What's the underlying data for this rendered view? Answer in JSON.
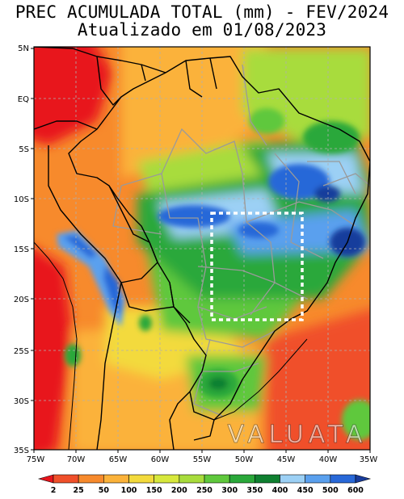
{
  "header": {
    "title_line1": "PREC ACUMULADA TOTAL (mm) - FEV/2024",
    "title_line2": "Atualizado em 01/08/2023"
  },
  "map": {
    "watermark": "VALUATA",
    "lat_labels": [
      "5N",
      "EQ",
      "5S",
      "10S",
      "15S",
      "20S",
      "25S",
      "30S",
      "35S"
    ],
    "lon_labels": [
      "75W",
      "70W",
      "65W",
      "60W",
      "55W",
      "50W",
      "45W",
      "40W",
      "35W"
    ]
  },
  "colorbar": {
    "ticks": [
      "2",
      "25",
      "50",
      "100",
      "150",
      "200",
      "250",
      "300",
      "350",
      "400",
      "450",
      "500",
      "600"
    ],
    "colors": [
      "#e8141b",
      "#f0502a",
      "#f78a2c",
      "#fbb23a",
      "#f3da3c",
      "#d7e83c",
      "#a8dc3c",
      "#5fc83c",
      "#2aa83a",
      "#0f8030",
      "#9cd0f5",
      "#5aa0ee",
      "#2868d8",
      "#183c9c"
    ]
  }
}
